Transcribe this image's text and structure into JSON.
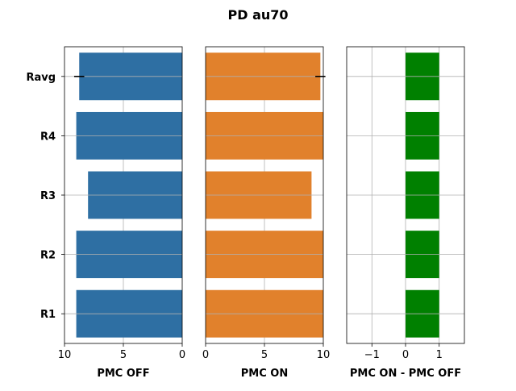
{
  "chart_data": {
    "type": "bar",
    "title": "PD au70",
    "categories": [
      "R1",
      "R2",
      "R3",
      "R4",
      "Ravg"
    ],
    "panels": [
      {
        "id": "off",
        "xlabel": "PMC OFF",
        "xlim": [
          10,
          0
        ],
        "xticks": [
          10,
          5,
          0
        ],
        "tick_labels": [
          "10",
          "5",
          "0"
        ],
        "color": "#2e6fa3",
        "values": [
          9,
          9,
          8,
          9,
          8.75
        ],
        "error": {
          "category": "Ravg",
          "value": 8.75,
          "err": 0.43
        },
        "grid": true
      },
      {
        "id": "on",
        "xlabel": "PMC ON",
        "xlim": [
          0,
          10
        ],
        "xticks": [
          0,
          5,
          10
        ],
        "tick_labels": [
          "0",
          "5",
          "10"
        ],
        "color": "#e1812c",
        "values": [
          10,
          10,
          9,
          10,
          9.75
        ],
        "error": {
          "category": "Ravg",
          "value": 9.75,
          "err": 0.43
        },
        "grid": true
      },
      {
        "id": "diff",
        "xlabel": "PMC ON - PMC OFF",
        "xlim": [
          -1.75,
          1.75
        ],
        "xticks": [
          -1,
          0,
          1
        ],
        "tick_labels": [
          "−1",
          "0",
          "1"
        ],
        "color": "#008000",
        "values": [
          1,
          1,
          1,
          1,
          1
        ],
        "grid": true
      }
    ]
  }
}
